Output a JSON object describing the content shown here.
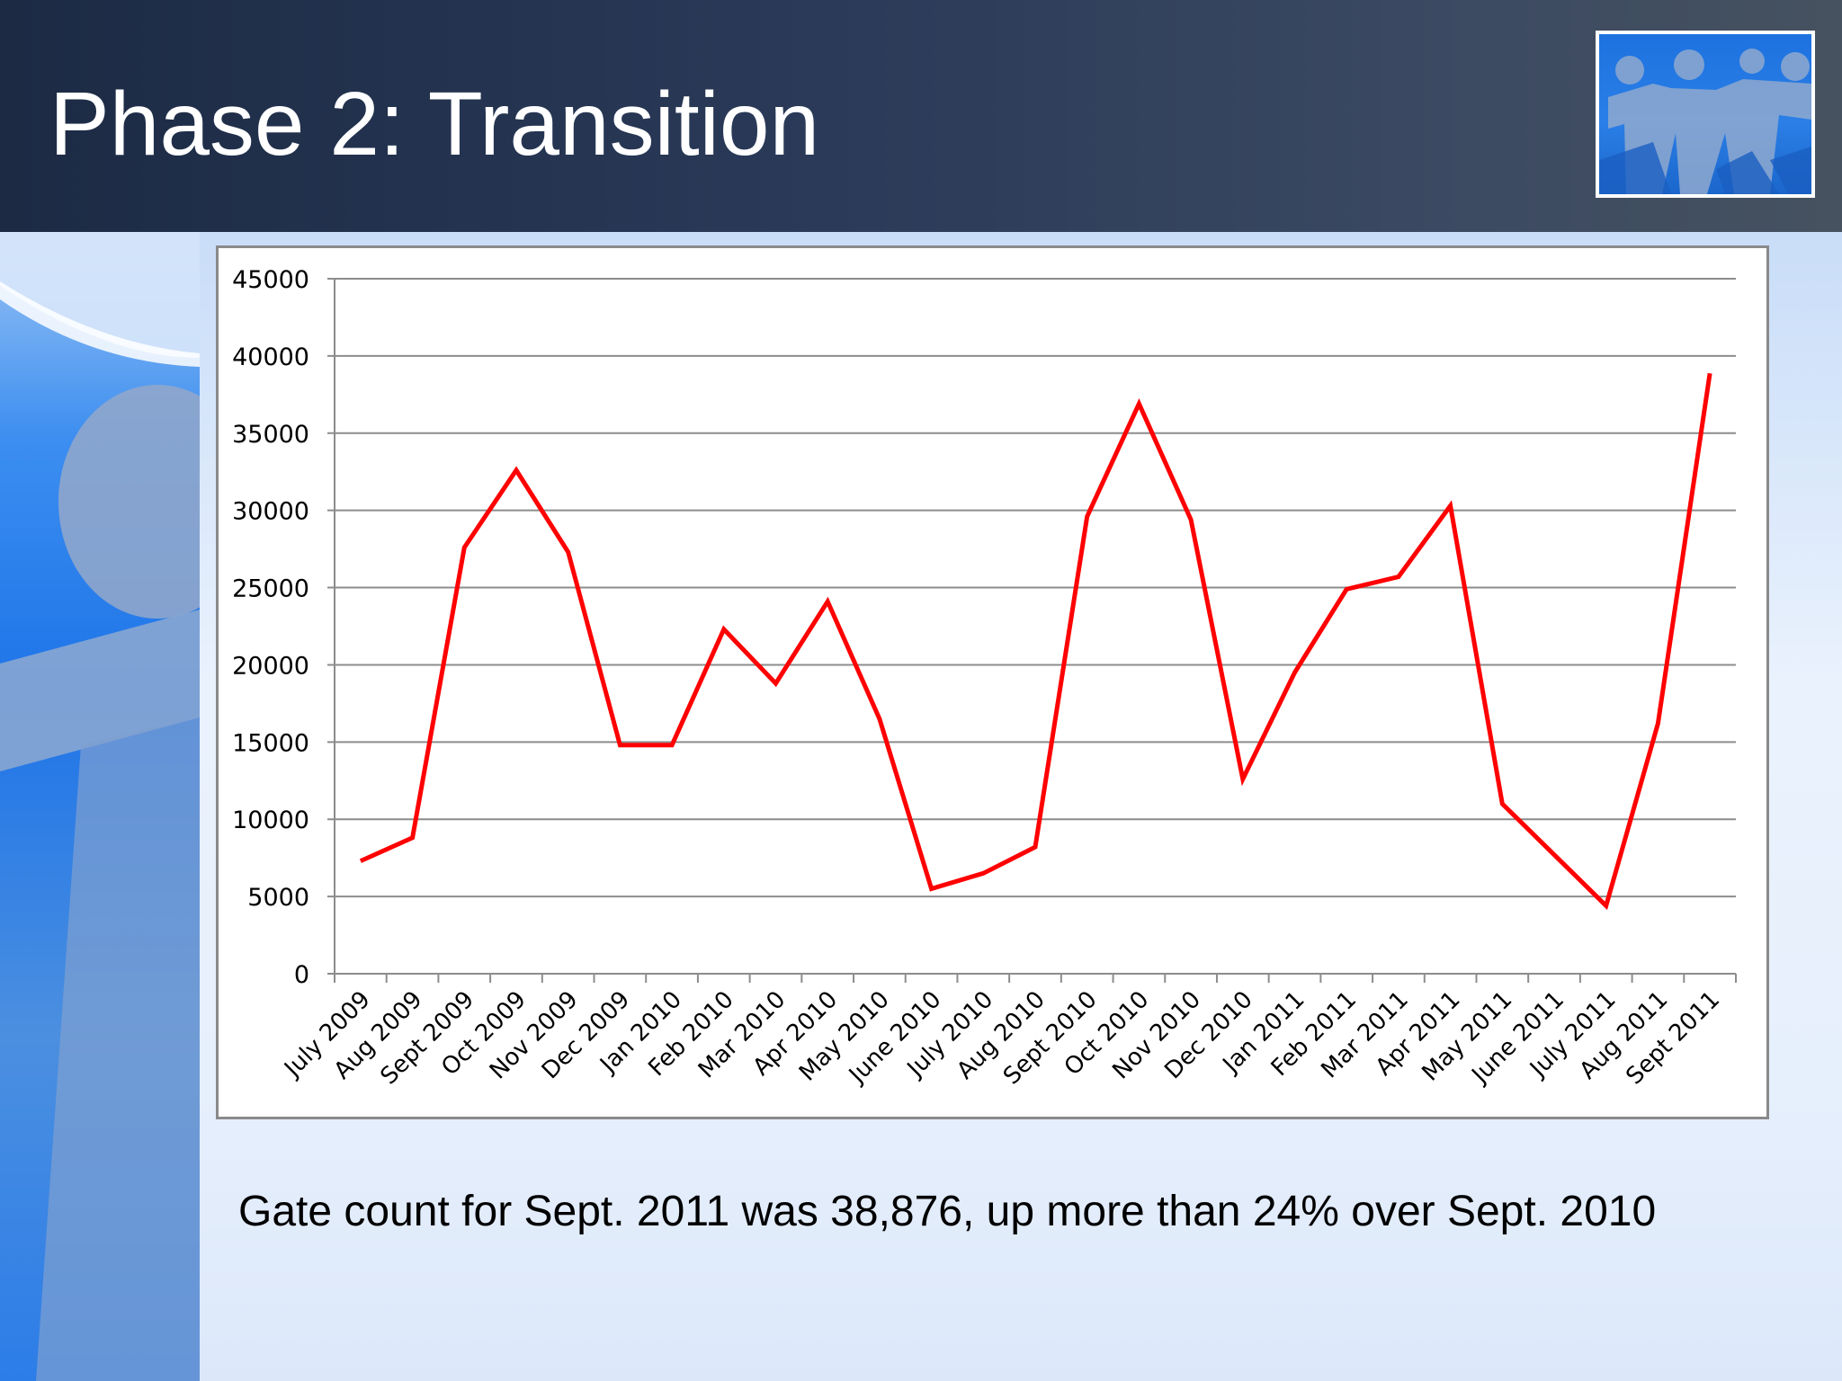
{
  "slide": {
    "title": "Phase 2: Transition",
    "caption": "Gate count for Sept. 2011 was 38,876, up more than 24% over Sept. 2010",
    "logo_icon": "paper-people-chain-icon"
  },
  "colors": {
    "header_bg": "#1c2a44",
    "title_text": "#ffffff",
    "line": "#ff0000",
    "grid": "#8c8c8c",
    "panel_border": "#8a8a8a"
  },
  "chart_data": {
    "type": "line",
    "title": "",
    "xlabel": "",
    "ylabel": "",
    "ylim": [
      0,
      45000
    ],
    "yticks": [
      0,
      5000,
      10000,
      15000,
      20000,
      25000,
      30000,
      35000,
      40000,
      45000
    ],
    "grid": true,
    "legend": null,
    "categories": [
      "July 2009",
      "Aug 2009",
      "Sept 2009",
      "Oct 2009",
      "Nov 2009",
      "Dec 2009",
      "Jan 2010",
      "Feb 2010",
      "Mar 2010",
      "Apr 2010",
      "May 2010",
      "June 2010",
      "July 2010",
      "Aug 2010",
      "Sept 2010",
      "Oct 2010",
      "Nov 2010",
      "Dec 2010",
      "Jan 2011",
      "Feb 2011",
      "Mar 2011",
      "Apr 2011",
      "May 2011",
      "June 2011",
      "July 2011",
      "Aug 2011",
      "Sept 2011"
    ],
    "series": [
      {
        "name": "Gate count",
        "color": "#ff0000",
        "values": [
          7300,
          8800,
          27600,
          32600,
          27300,
          14800,
          14800,
          22300,
          18800,
          24100,
          16500,
          5500,
          6500,
          8200,
          29600,
          36900,
          29400,
          12600,
          19500,
          24900,
          25700,
          30300,
          11000,
          7700,
          4400,
          16200,
          38876
        ]
      }
    ]
  }
}
